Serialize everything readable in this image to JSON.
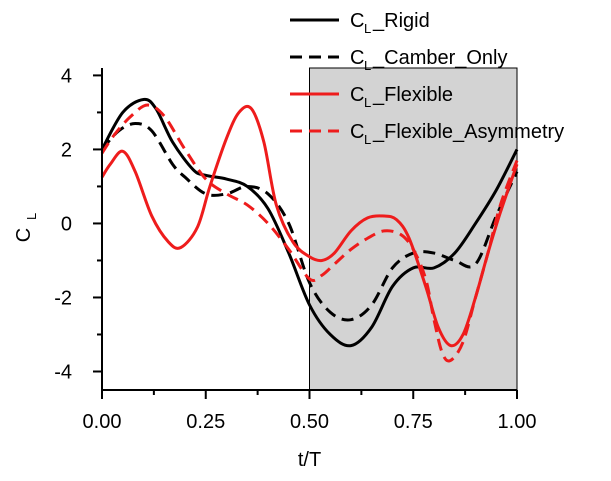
{
  "chart_data": {
    "type": "line",
    "xlabel": "t/T",
    "ylabel": {
      "main": "C",
      "sub": "L"
    },
    "xlim": [
      0.0,
      1.0
    ],
    "ylim": [
      -4.5,
      4.2
    ],
    "xticks": [
      "0.00",
      "0.25",
      "0.50",
      "0.75",
      "1.00"
    ],
    "xtick_values": [
      0.0,
      0.25,
      0.5,
      0.75,
      1.0
    ],
    "yticks": [
      "4",
      "2",
      "0",
      "-2",
      "-4"
    ],
    "ytick_values": [
      4,
      2,
      0,
      -2,
      -4
    ],
    "grid": false,
    "legend_position": "top-right",
    "shaded_region": {
      "x_start": 0.5,
      "x_end": 1.0,
      "color": "#d3d3d3"
    },
    "series": [
      {
        "name": {
          "main": "C",
          "sub": "L",
          "suffix": "_Rigid"
        },
        "color": "#000000",
        "dash": "solid",
        "x": [
          0.0,
          0.05,
          0.1,
          0.13,
          0.17,
          0.22,
          0.25,
          0.3,
          0.35,
          0.4,
          0.45,
          0.5,
          0.55,
          0.6,
          0.65,
          0.7,
          0.75,
          0.8,
          0.85,
          0.9,
          0.95,
          1.0
        ],
        "y": [
          2.0,
          3.0,
          3.35,
          3.1,
          2.2,
          1.45,
          1.3,
          1.2,
          1.0,
          0.4,
          -0.8,
          -2.2,
          -3.0,
          -3.3,
          -2.8,
          -1.7,
          -1.2,
          -1.2,
          -0.8,
          0.0,
          0.9,
          2.0
        ]
      },
      {
        "name": {
          "main": "C",
          "sub": "L",
          "suffix": "_Camber_Only"
        },
        "color": "#000000",
        "dash": "dashed",
        "x": [
          0.0,
          0.04,
          0.08,
          0.12,
          0.17,
          0.2,
          0.25,
          0.3,
          0.35,
          0.4,
          0.45,
          0.5,
          0.55,
          0.6,
          0.65,
          0.7,
          0.75,
          0.8,
          0.85,
          0.9,
          0.95,
          1.0
        ],
        "y": [
          2.0,
          2.5,
          2.7,
          2.5,
          1.6,
          1.25,
          0.8,
          0.8,
          1.0,
          0.8,
          0.0,
          -1.6,
          -2.4,
          -2.6,
          -2.2,
          -1.2,
          -0.8,
          -0.8,
          -1.0,
          -1.1,
          0.2,
          1.4
        ]
      },
      {
        "name": {
          "main": "C",
          "sub": "L",
          "suffix": "_Flexible"
        },
        "color": "#ee1c1c",
        "dash": "solid",
        "x": [
          0.0,
          0.02,
          0.05,
          0.08,
          0.12,
          0.16,
          0.19,
          0.23,
          0.26,
          0.3,
          0.33,
          0.36,
          0.39,
          0.42,
          0.46,
          0.5,
          0.53,
          0.56,
          0.6,
          0.64,
          0.68,
          0.71,
          0.74,
          0.78,
          0.81,
          0.84,
          0.87,
          0.9,
          0.93,
          0.96,
          1.0
        ],
        "y": [
          1.25,
          1.6,
          1.95,
          1.4,
          0.2,
          -0.5,
          -0.65,
          -0.1,
          1.0,
          2.3,
          3.0,
          3.1,
          2.2,
          0.5,
          -0.5,
          -0.9,
          -1.0,
          -0.8,
          -0.2,
          0.15,
          0.2,
          0.1,
          -0.4,
          -1.7,
          -2.8,
          -3.3,
          -3.0,
          -2.0,
          -0.8,
          0.3,
          1.6
        ]
      },
      {
        "name": {
          "main": "C",
          "sub": "L",
          "suffix": "_Flexible_Asymmetry"
        },
        "color": "#ee1c1c",
        "dash": "dashed",
        "x": [
          0.0,
          0.03,
          0.07,
          0.11,
          0.15,
          0.2,
          0.25,
          0.3,
          0.35,
          0.4,
          0.45,
          0.5,
          0.53,
          0.56,
          0.6,
          0.64,
          0.68,
          0.72,
          0.75,
          0.78,
          0.8,
          0.82,
          0.84,
          0.87,
          0.9,
          0.93,
          0.96,
          1.0
        ],
        "y": [
          1.9,
          2.4,
          2.9,
          3.2,
          2.9,
          2.0,
          1.2,
          0.8,
          0.5,
          0.0,
          -0.7,
          -1.5,
          -1.4,
          -1.1,
          -0.7,
          -0.4,
          -0.2,
          -0.3,
          -0.7,
          -1.5,
          -2.6,
          -3.5,
          -3.7,
          -3.2,
          -2.0,
          -0.8,
          0.5,
          1.7
        ]
      }
    ]
  }
}
